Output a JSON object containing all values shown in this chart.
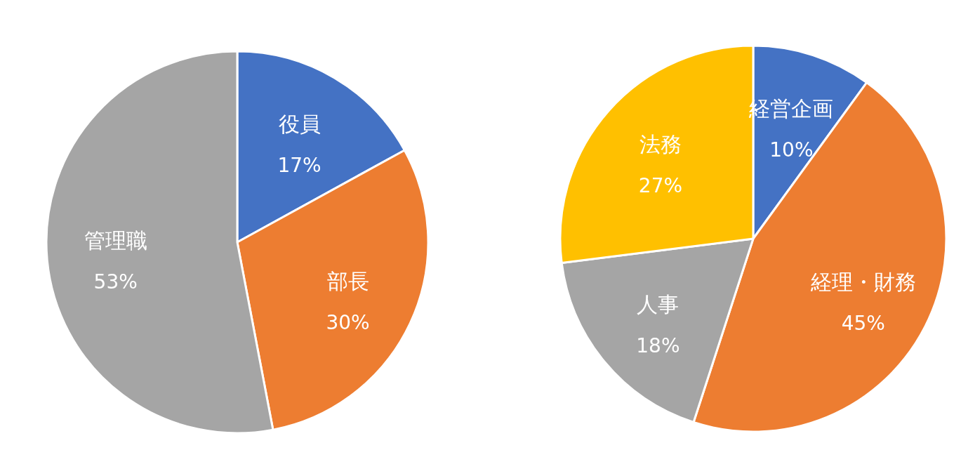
{
  "chart_data": [
    {
      "type": "pie",
      "categories": [
        "役員",
        "部長",
        "管理職"
      ],
      "values": [
        17,
        30,
        53
      ],
      "value_labels": [
        "17%",
        "30%",
        "53%"
      ],
      "colors": [
        "#4472c4",
        "#ed7d31",
        "#a5a5a5"
      ]
    },
    {
      "type": "pie",
      "categories": [
        "経営企画",
        "経理・財務",
        "人事",
        "法務"
      ],
      "values": [
        10,
        45,
        18,
        27
      ],
      "value_labels": [
        "10%",
        "45%",
        "18%",
        "27%"
      ],
      "colors": [
        "#4472c4",
        "#ed7d31",
        "#a5a5a5",
        "#ffc000"
      ]
    }
  ]
}
